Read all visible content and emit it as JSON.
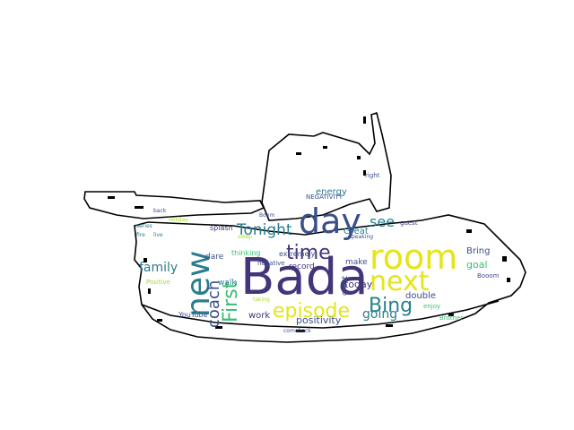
{
  "palette": {
    "dark_purple": "#44357a",
    "indigo": "#3b4f8a",
    "teal": "#2a7d8e",
    "sea": "#26828e",
    "green": "#3bbd71",
    "lime": "#a8db34",
    "yellow": "#e6e419",
    "outline": "#000000",
    "background": "#ffffff"
  },
  "words": [
    {
      "text": "Bada",
      "color": "dark_purple"
    },
    {
      "text": "room",
      "color": "yellow"
    },
    {
      "text": "day",
      "color": "indigo"
    },
    {
      "text": "new",
      "color": "teal"
    },
    {
      "text": "next",
      "color": "yellow"
    },
    {
      "text": "episode",
      "color": "yellow"
    },
    {
      "text": "First",
      "color": "green"
    },
    {
      "text": "Bing",
      "color": "sea"
    },
    {
      "text": "time",
      "color": "dark_purple"
    },
    {
      "text": "Tonight",
      "color": "teal"
    },
    {
      "text": "coach",
      "color": "indigo"
    },
    {
      "text": "see",
      "color": "sea"
    },
    {
      "text": "family",
      "color": "teal"
    },
    {
      "text": "going",
      "color": "teal"
    },
    {
      "text": "positivity",
      "color": "indigo"
    },
    {
      "text": "Great",
      "color": "sea"
    },
    {
      "text": "energy",
      "color": "teal"
    },
    {
      "text": "today",
      "color": "dark_purple"
    },
    {
      "text": "make",
      "color": "indigo"
    },
    {
      "text": "Bring",
      "color": "indigo"
    },
    {
      "text": "goal",
      "color": "green"
    },
    {
      "text": "double",
      "color": "indigo"
    },
    {
      "text": "work",
      "color": "dark_purple"
    },
    {
      "text": "walk",
      "color": "sea"
    },
    {
      "text": "dare",
      "color": "indigo"
    },
    {
      "text": "record",
      "color": "dark_purple"
    },
    {
      "text": "extremely",
      "color": "indigo"
    },
    {
      "text": "negative",
      "color": "indigo"
    },
    {
      "text": "thinking",
      "color": "green"
    },
    {
      "text": "splash",
      "color": "dark_purple"
    },
    {
      "text": "YouTube",
      "color": "indigo"
    },
    {
      "text": "NEGATIVITY",
      "color": "indigo"
    },
    {
      "text": "Booom",
      "color": "indigo"
    },
    {
      "text": "enjoy",
      "color": "green"
    },
    {
      "text": "guest",
      "color": "dark_purple"
    },
    {
      "text": "right",
      "color": "indigo"
    },
    {
      "text": "speaking",
      "color": "indigo"
    },
    {
      "text": "comeback",
      "color": "indigo"
    },
    {
      "text": "holiday",
      "color": "lime"
    },
    {
      "text": "live",
      "color": "teal"
    },
    {
      "text": "back",
      "color": "indigo"
    },
    {
      "text": "series",
      "color": "teal"
    },
    {
      "text": "Boom",
      "color": "indigo"
    },
    {
      "text": "Brother",
      "color": "green"
    },
    {
      "text": "Positive",
      "color": "lime"
    },
    {
      "text": "crest",
      "color": "indigo"
    },
    {
      "text": "fire",
      "color": "teal"
    },
    {
      "text": "taking",
      "color": "lime"
    },
    {
      "text": "sleep",
      "color": "lime"
    }
  ]
}
